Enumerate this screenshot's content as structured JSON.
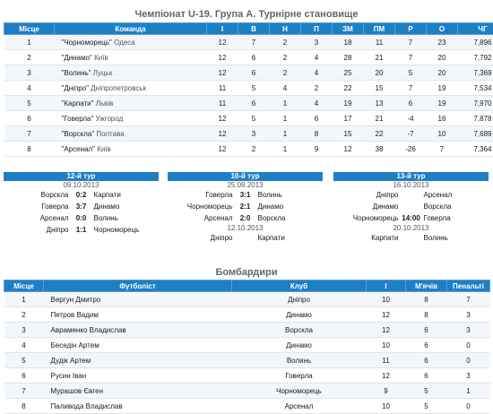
{
  "standings": {
    "title": "Чемпіонат U-19. Група А. Турнірне становище",
    "columns": [
      "Місце",
      "Команда",
      "І",
      "В",
      "Н",
      "П",
      "ЗМ",
      "ПМ",
      "Р",
      "О",
      "ЧГ"
    ],
    "rows": [
      {
        "place": "1",
        "team": "\"Чорноморець\"",
        "city": "Одеса",
        "games": "12",
        "wins": "7",
        "draws": "2",
        "losses": "3",
        "gf": "18",
        "ga": "11",
        "diff": "7",
        "points": "23",
        "fp": "7,896"
      },
      {
        "place": "2",
        "team": "\"Динамо\"",
        "city": "Київ",
        "games": "12",
        "wins": "6",
        "draws": "2",
        "losses": "4",
        "gf": "28",
        "ga": "21",
        "diff": "7",
        "points": "20",
        "fp": "7,792"
      },
      {
        "place": "3",
        "team": "\"Волинь\"",
        "city": "Луцьк",
        "games": "12",
        "wins": "6",
        "draws": "2",
        "losses": "4",
        "gf": "25",
        "ga": "20",
        "diff": "5",
        "points": "20",
        "fp": "7,369"
      },
      {
        "place": "4",
        "team": "\"Дніпро\"",
        "city": "Дніпропетровськ",
        "games": "11",
        "wins": "5",
        "draws": "4",
        "losses": "2",
        "gf": "22",
        "ga": "15",
        "diff": "7",
        "points": "19",
        "fp": "7,534"
      },
      {
        "place": "5",
        "team": "\"Карпати\"",
        "city": "Львів",
        "games": "11",
        "wins": "6",
        "draws": "1",
        "losses": "4",
        "gf": "19",
        "ga": "13",
        "diff": "6",
        "points": "19",
        "fp": "7,970"
      },
      {
        "place": "6",
        "team": "\"Говерла\"",
        "city": "Ужгород",
        "games": "12",
        "wins": "5",
        "draws": "1",
        "losses": "6",
        "gf": "17",
        "ga": "21",
        "diff": "-4",
        "points": "16",
        "fp": "7,878"
      },
      {
        "place": "7",
        "team": "\"Ворскла\"",
        "city": "Полтава",
        "games": "12",
        "wins": "3",
        "draws": "1",
        "losses": "8",
        "gf": "15",
        "ga": "22",
        "diff": "-7",
        "points": "10",
        "fp": "7,689"
      },
      {
        "place": "8",
        "team": "\"Арсенал\"",
        "city": "Київ",
        "games": "12",
        "wins": "2",
        "draws": "1",
        "losses": "9",
        "gf": "12",
        "ga": "38",
        "diff": "-26",
        "points": "7",
        "fp": "7,364"
      }
    ]
  },
  "rounds": [
    {
      "label": "12-й тур",
      "blocks": [
        {
          "date": "09.10.2013",
          "matches": [
            {
              "home": "Ворскла",
              "score": "0:2",
              "away": "Карпати"
            },
            {
              "home": "Говерла",
              "score": "3:7",
              "away": "Динамо"
            },
            {
              "home": "Арсенал",
              "score": "0:0",
              "away": "Волинь"
            },
            {
              "home": "Дніпро",
              "score": "1:1",
              "away": "Чорноморець"
            }
          ]
        }
      ]
    },
    {
      "label": "10-й тур",
      "blocks": [
        {
          "date": "25.09.2013",
          "matches": [
            {
              "home": "Говерла",
              "score": "3:1",
              "away": "Волинь"
            },
            {
              "home": "Чорноморець",
              "score": "2:1",
              "away": "Динамо"
            },
            {
              "home": "Арсенал",
              "score": "2:0",
              "away": "Ворскла"
            }
          ]
        },
        {
          "date": "12.10.2013",
          "matches": [
            {
              "home": "Дніпро",
              "score": "",
              "away": "Карпати"
            }
          ]
        }
      ]
    },
    {
      "label": "13-й тур",
      "blocks": [
        {
          "date": "16.10.2013",
          "matches": [
            {
              "home": "Дніпро",
              "score": "",
              "away": "Арсенал"
            },
            {
              "home": "Динамо",
              "score": "",
              "away": "Ворскла"
            },
            {
              "home": "Чорноморець",
              "score": "14:00",
              "away": "Говерла"
            }
          ]
        },
        {
          "date": "20.10.2013",
          "matches": [
            {
              "home": "Карпати",
              "score": "",
              "away": "Волинь"
            }
          ]
        }
      ]
    }
  ],
  "scorers": {
    "title": "Бомбардири",
    "columns": [
      "Місце",
      "Футболіст",
      "Клуб",
      "І",
      "М'ячів",
      "Пенальті"
    ],
    "rows": [
      {
        "place": "1",
        "player": "Вергун Дмитро",
        "club": "Дніпро",
        "games": "10",
        "goals": "8",
        "penalties": "7"
      },
      {
        "place": "2",
        "player": "Петров Вадим",
        "club": "Динамо",
        "games": "12",
        "goals": "8",
        "penalties": "3"
      },
      {
        "place": "3",
        "player": "Авраменко Владислав",
        "club": "Ворскла",
        "games": "12",
        "goals": "6",
        "penalties": "3"
      },
      {
        "place": "4",
        "player": "Беседін Артем",
        "club": "Динамо",
        "games": "10",
        "goals": "6",
        "penalties": "0"
      },
      {
        "place": "5",
        "player": "Дудік Артем",
        "club": "Волинь",
        "games": "11",
        "goals": "6",
        "penalties": "0"
      },
      {
        "place": "6",
        "player": "Русин Іван",
        "club": "Говерла",
        "games": "12",
        "goals": "6",
        "penalties": "3"
      },
      {
        "place": "7",
        "player": "Мурашов Євген",
        "club": "Чорноморець",
        "games": "9",
        "goals": "5",
        "penalties": "1"
      },
      {
        "place": "8",
        "player": "Паливода Владислав",
        "club": "Арсенал",
        "games": "10",
        "goals": "5",
        "penalties": "0"
      }
    ]
  }
}
